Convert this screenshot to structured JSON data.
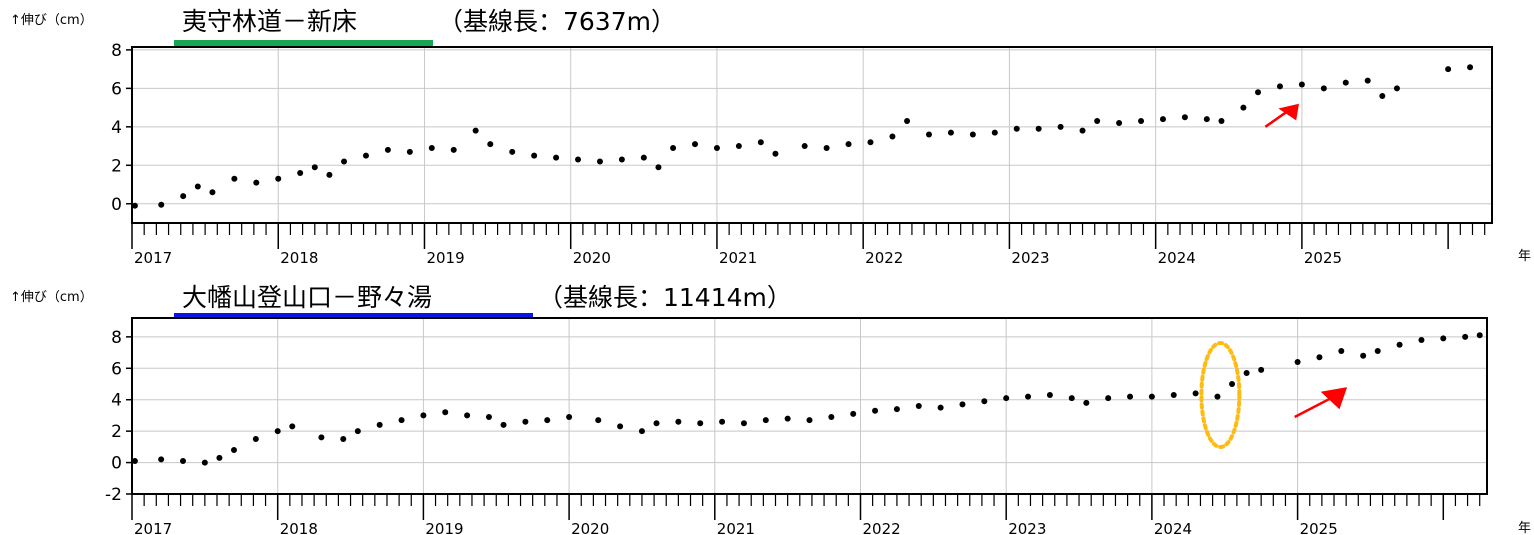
{
  "charts": [
    {
      "station_title": "夷守林道－新床",
      "baseline_text": "（基線長：7637m）",
      "ylabel": "↑伸び（cm）",
      "xunit": "年",
      "title_underline_color": "#1aa650",
      "yticks": [
        "0",
        "2",
        "4",
        "6",
        "8"
      ],
      "years": [
        "2017",
        "2018",
        "2019",
        "2020",
        "2021",
        "2022",
        "2023",
        "2024",
        "2025"
      ]
    },
    {
      "station_title": "大幡山登山口－野々湯",
      "baseline_text": "（基線長：11414m）",
      "ylabel": "↑伸び（cm）",
      "xunit": "年",
      "title_underline_color": "#0a14e6",
      "yticks": [
        "-2",
        "0",
        "2",
        "4",
        "6",
        "8"
      ],
      "years": [
        "2017",
        "2018",
        "2019",
        "2020",
        "2021",
        "2022",
        "2023",
        "2024",
        "2025"
      ]
    }
  ],
  "chart_data": [
    {
      "type": "scatter",
      "title": "夷守林道－新床 （基線長：7637m）",
      "ylabel": "↑伸び（cm）",
      "xlabel": "年",
      "xlim": [
        2017.0,
        2026.3
      ],
      "ylim": [
        -1,
        8
      ],
      "grid": true,
      "marker_color": "#000000",
      "annotation_color": "#ff0000",
      "series": [
        {
          "values": [
            [
              2017.02,
              -0.1
            ],
            [
              2017.2,
              -0.05
            ],
            [
              2017.35,
              0.4
            ],
            [
              2017.45,
              0.9
            ],
            [
              2017.55,
              0.6
            ],
            [
              2017.7,
              1.3
            ],
            [
              2017.85,
              1.1
            ],
            [
              2018.0,
              1.3
            ],
            [
              2018.15,
              1.6
            ],
            [
              2018.25,
              1.9
            ],
            [
              2018.35,
              1.5
            ],
            [
              2018.45,
              2.2
            ],
            [
              2018.6,
              2.5
            ],
            [
              2018.75,
              2.8
            ],
            [
              2018.9,
              2.7
            ],
            [
              2019.05,
              2.9
            ],
            [
              2019.2,
              2.8
            ],
            [
              2019.35,
              3.8
            ],
            [
              2019.45,
              3.1
            ],
            [
              2019.6,
              2.7
            ],
            [
              2019.75,
              2.5
            ],
            [
              2019.9,
              2.4
            ],
            [
              2020.05,
              2.3
            ],
            [
              2020.2,
              2.2
            ],
            [
              2020.35,
              2.3
            ],
            [
              2020.5,
              2.4
            ],
            [
              2020.6,
              1.9
            ],
            [
              2020.7,
              2.9
            ],
            [
              2020.85,
              3.1
            ],
            [
              2021.0,
              2.9
            ],
            [
              2021.15,
              3.0
            ],
            [
              2021.3,
              3.2
            ],
            [
              2021.4,
              2.6
            ],
            [
              2021.6,
              3.0
            ],
            [
              2021.75,
              2.9
            ],
            [
              2021.9,
              3.1
            ],
            [
              2022.05,
              3.2
            ],
            [
              2022.2,
              3.5
            ],
            [
              2022.3,
              4.3
            ],
            [
              2022.45,
              3.6
            ],
            [
              2022.6,
              3.7
            ],
            [
              2022.75,
              3.6
            ],
            [
              2022.9,
              3.7
            ],
            [
              2023.05,
              3.9
            ],
            [
              2023.2,
              3.9
            ],
            [
              2023.35,
              4.0
            ],
            [
              2023.5,
              3.8
            ],
            [
              2023.6,
              4.3
            ],
            [
              2023.75,
              4.2
            ],
            [
              2023.9,
              4.3
            ],
            [
              2024.05,
              4.4
            ],
            [
              2024.2,
              4.5
            ],
            [
              2024.35,
              4.4
            ],
            [
              2024.45,
              4.3
            ],
            [
              2024.6,
              5.0
            ],
            [
              2024.7,
              5.8
            ],
            [
              2024.85,
              6.1
            ],
            [
              2025.0,
              6.2
            ],
            [
              2025.15,
              6.0
            ],
            [
              2025.3,
              6.3
            ],
            [
              2025.45,
              6.4
            ],
            [
              2025.55,
              5.6
            ],
            [
              2025.65,
              6.0
            ],
            [
              2026.0,
              7.0
            ],
            [
              2026.15,
              7.1
            ]
          ]
        }
      ]
    },
    {
      "type": "scatter",
      "title": "大幡山登山口－野々湯 （基線長：11414m）",
      "ylabel": "↑伸び（cm）",
      "xlabel": "年",
      "xlim": [
        2017.0,
        2026.3
      ],
      "ylim": [
        -2,
        9
      ],
      "grid": true,
      "marker_color": "#000000",
      "annotation_color": "#ff0000",
      "highlight_color": "#ffbb11",
      "series": [
        {
          "values": [
            [
              2017.02,
              0.1
            ],
            [
              2017.2,
              0.2
            ],
            [
              2017.35,
              0.1
            ],
            [
              2017.5,
              0.0
            ],
            [
              2017.6,
              0.3
            ],
            [
              2017.7,
              0.8
            ],
            [
              2017.85,
              1.5
            ],
            [
              2018.0,
              2.0
            ],
            [
              2018.1,
              2.3
            ],
            [
              2018.3,
              1.6
            ],
            [
              2018.45,
              1.5
            ],
            [
              2018.55,
              2.0
            ],
            [
              2018.7,
              2.4
            ],
            [
              2018.85,
              2.7
            ],
            [
              2019.0,
              3.0
            ],
            [
              2019.15,
              3.2
            ],
            [
              2019.3,
              3.0
            ],
            [
              2019.45,
              2.9
            ],
            [
              2019.55,
              2.4
            ],
            [
              2019.7,
              2.6
            ],
            [
              2019.85,
              2.7
            ],
            [
              2020.0,
              2.9
            ],
            [
              2020.2,
              2.7
            ],
            [
              2020.35,
              2.3
            ],
            [
              2020.5,
              2.0
            ],
            [
              2020.6,
              2.5
            ],
            [
              2020.75,
              2.6
            ],
            [
              2020.9,
              2.5
            ],
            [
              2021.05,
              2.6
            ],
            [
              2021.2,
              2.5
            ],
            [
              2021.35,
              2.7
            ],
            [
              2021.5,
              2.8
            ],
            [
              2021.65,
              2.7
            ],
            [
              2021.8,
              2.9
            ],
            [
              2021.95,
              3.1
            ],
            [
              2022.1,
              3.3
            ],
            [
              2022.25,
              3.4
            ],
            [
              2022.4,
              3.6
            ],
            [
              2022.55,
              3.5
            ],
            [
              2022.7,
              3.7
            ],
            [
              2022.85,
              3.9
            ],
            [
              2023.0,
              4.1
            ],
            [
              2023.15,
              4.2
            ],
            [
              2023.3,
              4.3
            ],
            [
              2023.45,
              4.1
            ],
            [
              2023.55,
              3.8
            ],
            [
              2023.7,
              4.1
            ],
            [
              2023.85,
              4.2
            ],
            [
              2024.0,
              4.2
            ],
            [
              2024.15,
              4.3
            ],
            [
              2024.3,
              4.4
            ],
            [
              2024.45,
              4.2
            ],
            [
              2024.55,
              5.0
            ],
            [
              2024.65,
              5.7
            ],
            [
              2024.75,
              5.9
            ],
            [
              2025.0,
              6.4
            ],
            [
              2025.15,
              6.7
            ],
            [
              2025.3,
              7.1
            ],
            [
              2025.45,
              6.8
            ],
            [
              2025.55,
              7.1
            ],
            [
              2025.7,
              7.5
            ],
            [
              2025.85,
              7.8
            ],
            [
              2026.0,
              7.9
            ],
            [
              2026.15,
              8.0
            ],
            [
              2026.25,
              8.1
            ]
          ]
        }
      ]
    }
  ]
}
